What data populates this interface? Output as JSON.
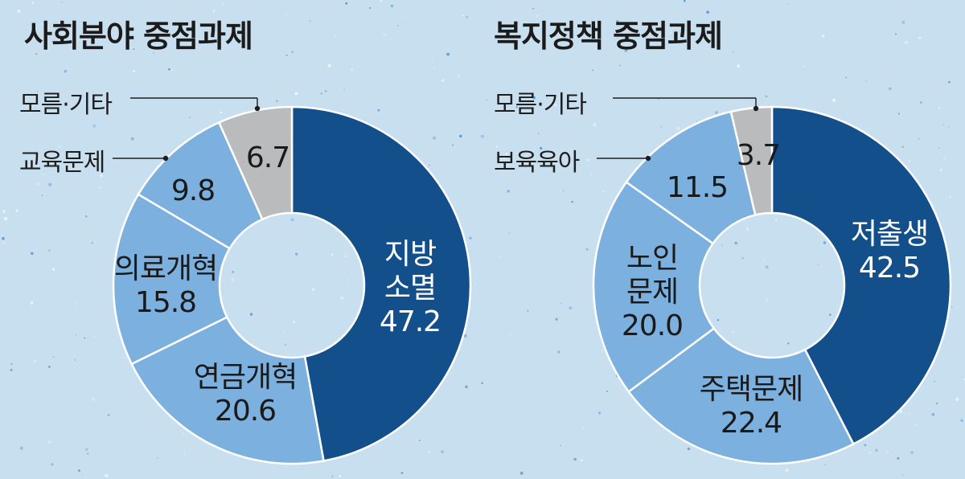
{
  "colors": {
    "primary": "#134f8b",
    "secondary": "#7cb0de",
    "other": "#b9bbbd",
    "background": "#c8dff0"
  },
  "chart_data": [
    {
      "type": "pie",
      "title": "사회분야 중점과제",
      "slices": [
        {
          "label": "지방 소멸",
          "value": 47.2,
          "label_lines": [
            "지방",
            "소멸"
          ],
          "value_text": "47.2"
        },
        {
          "label": "연금개혁",
          "value": 20.6,
          "label_lines": [
            "연금개혁"
          ],
          "value_text": "20.6"
        },
        {
          "label": "의료개혁",
          "value": 15.8,
          "label_lines": [
            "의료개혁"
          ],
          "value_text": "15.8"
        },
        {
          "label": "교육문제",
          "value": 9.8,
          "label_lines": [],
          "value_text": "9.8",
          "external_label": "교육문제"
        },
        {
          "label": "모름·기타",
          "value": 6.7,
          "label_lines": [],
          "value_text": "6.7",
          "external_label": "모름·기타"
        }
      ]
    },
    {
      "type": "pie",
      "title": "복지정책 중점과제",
      "slices": [
        {
          "label": "저출생",
          "value": 42.5,
          "label_lines": [
            "저출생"
          ],
          "value_text": "42.5"
        },
        {
          "label": "주택문제",
          "value": 22.4,
          "label_lines": [
            "주택문제"
          ],
          "value_text": "22.4"
        },
        {
          "label": "노인 문제",
          "value": 20.0,
          "label_lines": [
            "노인",
            "문제"
          ],
          "value_text": "20.0"
        },
        {
          "label": "보육육아",
          "value": 11.5,
          "label_lines": [],
          "value_text": "11.5",
          "external_label": "보육육아"
        },
        {
          "label": "모름·기타",
          "value": 3.7,
          "label_lines": [],
          "value_text": "3.7",
          "external_label": "모름·기타"
        }
      ]
    }
  ]
}
